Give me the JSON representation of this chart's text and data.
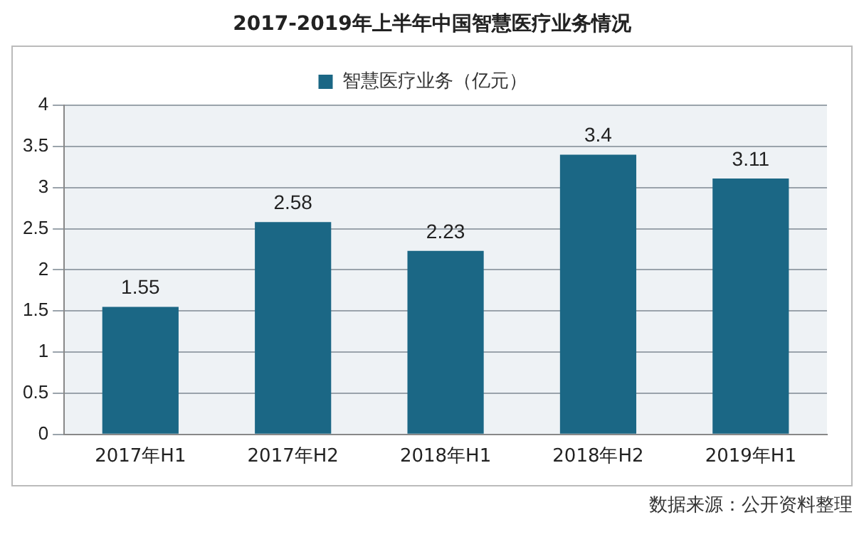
{
  "chart_data": {
    "type": "bar",
    "title": "2017-2019年上半年中国智慧医疗业务情况",
    "categories": [
      "2017年H1",
      "2017年H2",
      "2018年H1",
      "2018年H2",
      "2019年H1"
    ],
    "series": [
      {
        "name": "智慧医疗业务（亿元）",
        "color": "#1b6785",
        "values": [
          1.55,
          2.58,
          2.23,
          3.4,
          3.11
        ]
      }
    ],
    "ylim": [
      0,
      4
    ],
    "yticks": [
      0,
      0.5,
      1,
      1.5,
      2,
      2.5,
      3,
      3.5,
      4
    ],
    "grid": "y",
    "legend": "top",
    "data_labels": true,
    "annotations": [
      "数据来源：公开资料整理"
    ]
  }
}
